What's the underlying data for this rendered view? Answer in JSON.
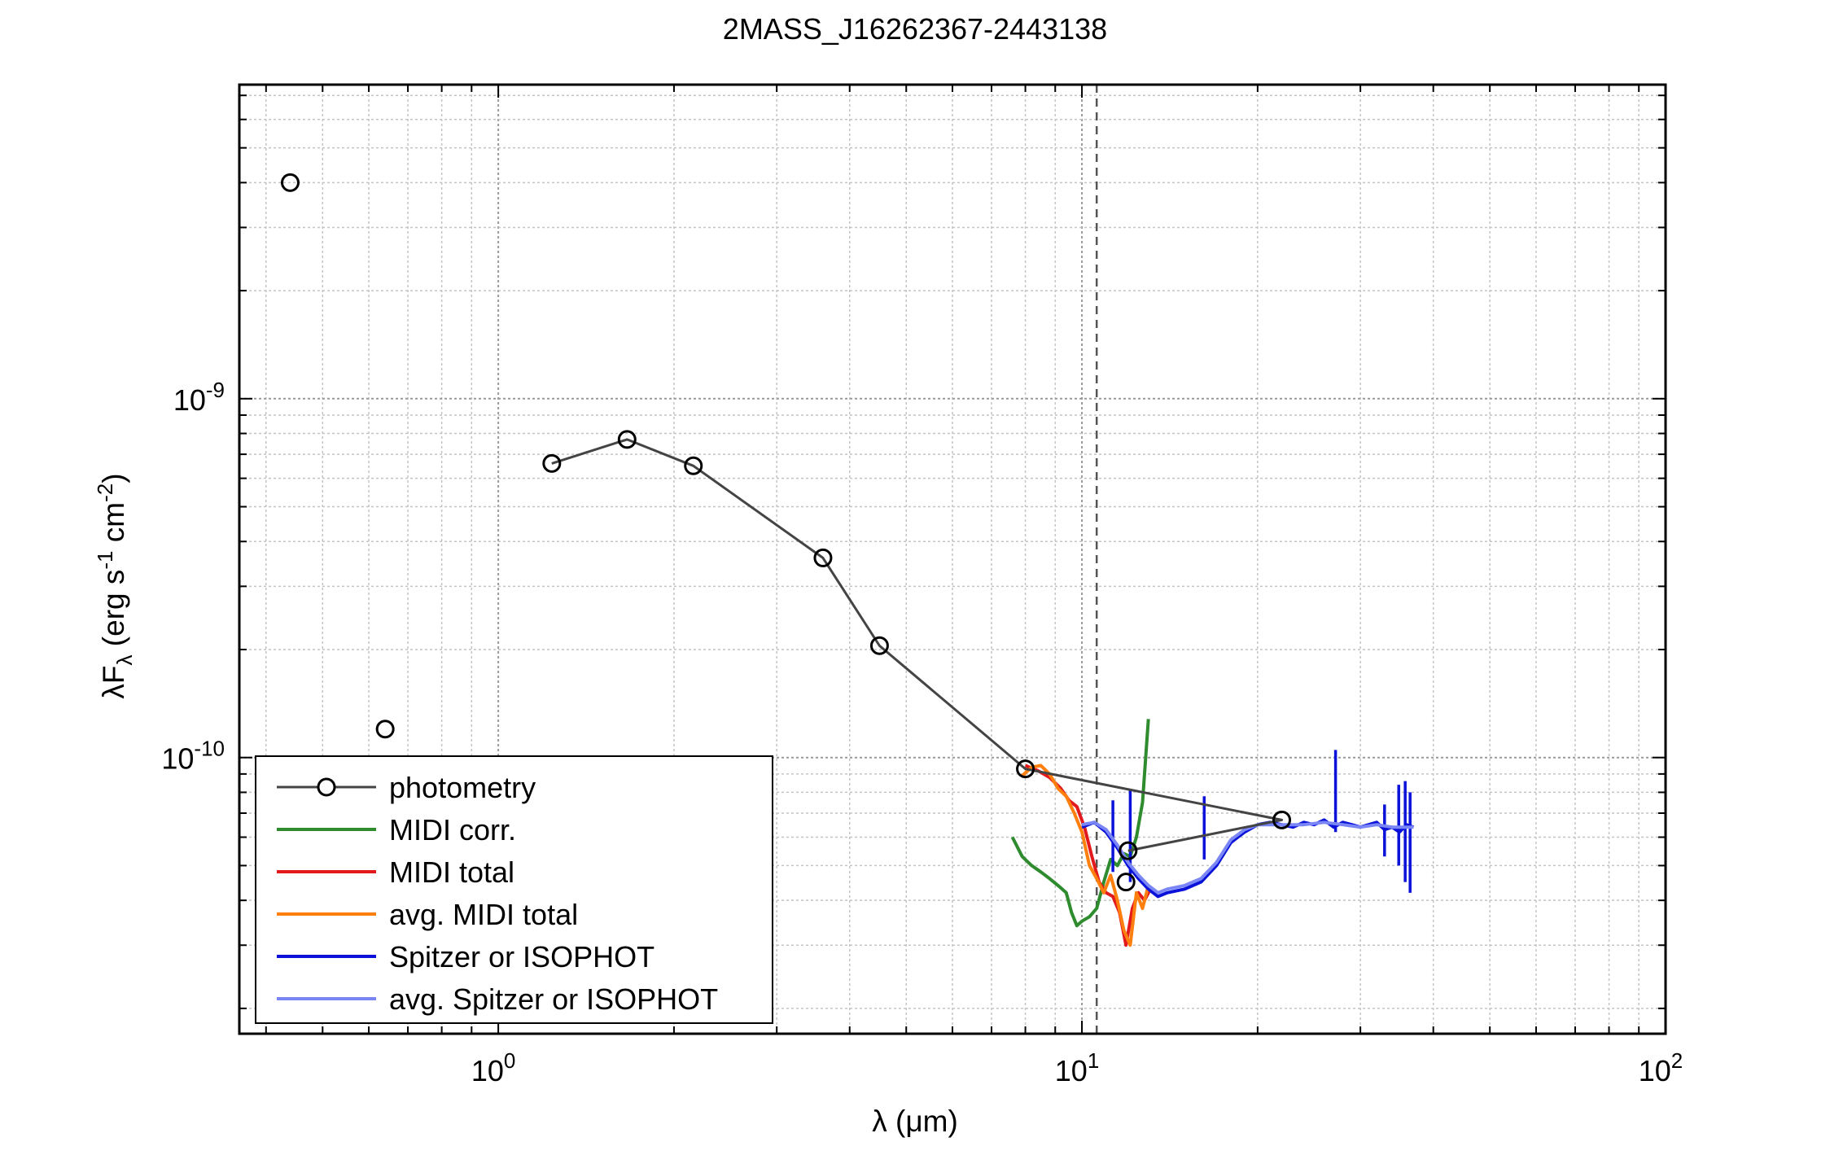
{
  "chart_data": {
    "type": "line",
    "title": "2MASS_J16262367-2443138",
    "xlabel": {
      "lambda": "λ",
      "rest": " (μm)"
    },
    "ylabel": {
      "lambda": "λF",
      "sub": "λ",
      "p1": " (erg s",
      "sup1": "-1",
      "p2": " cm",
      "sup2": "-2",
      "p3": ")"
    },
    "x_scale": "log",
    "y_scale": "log",
    "xlim": [
      0.36,
      100
    ],
    "ylim": [
      1.7e-11,
      7.5e-09
    ],
    "grid": true,
    "legend_position": "lower-left",
    "x_ticks": [
      {
        "value": 1,
        "base": "10",
        "exp": "0"
      },
      {
        "value": 10,
        "base": "10",
        "exp": "1"
      },
      {
        "value": 100,
        "base": "10",
        "exp": "2"
      }
    ],
    "y_ticks": [
      {
        "value": 1e-10,
        "base": "10",
        "exp": "-10"
      },
      {
        "value": 1e-09,
        "base": "10",
        "exp": "-9"
      }
    ],
    "vertical_marker": {
      "x": 10.6,
      "style": "dashed",
      "color": "#555555"
    },
    "series": [
      {
        "name": "photometry",
        "color": "#444444",
        "marker": "circle",
        "x": [
          1.235,
          1.662,
          2.159,
          3.6,
          4.5,
          8.0,
          22.0,
          12.0
        ],
        "y": [
          6.6e-10,
          7.7e-10,
          6.5e-10,
          3.6e-10,
          2.05e-10,
          9.3e-11,
          6.7e-11,
          5.5e-11
        ],
        "unconnected": {
          "x": [
            0.44,
            0.64,
            11.9
          ],
          "y": [
            4e-09,
            1.2e-10,
            4.5e-11
          ]
        }
      },
      {
        "name": "MIDI corr.",
        "color": "#2e8b2e",
        "x": [
          7.6,
          7.9,
          8.2,
          8.5,
          8.8,
          9.1,
          9.4,
          9.6,
          9.8,
          10.0,
          10.3,
          10.6,
          10.9,
          11.2,
          11.5,
          11.8,
          12.1,
          12.4,
          12.7,
          13.0
        ],
        "y": [
          6e-11,
          5.3e-11,
          5e-11,
          4.8e-11,
          4.6e-11,
          4.4e-11,
          4.2e-11,
          3.7e-11,
          3.4e-11,
          3.5e-11,
          3.6e-11,
          3.8e-11,
          4.5e-11,
          5.2e-11,
          5e-11,
          5.4e-11,
          5.3e-11,
          6e-11,
          7.5e-11,
          1.28e-10
        ]
      },
      {
        "name": "MIDI total",
        "color": "#e31a1c",
        "x": [
          8.0,
          8.4,
          8.8,
          9.2,
          9.5,
          9.8,
          10.1,
          10.4,
          10.7,
          11.0,
          11.3,
          11.6,
          11.9,
          12.2,
          12.5,
          12.8,
          13.1
        ],
        "y": [
          9.5e-11,
          9.2e-11,
          8.8e-11,
          8.2e-11,
          7.6e-11,
          7.3e-11,
          6.4e-11,
          5.3e-11,
          4.5e-11,
          4.2e-11,
          4.1e-11,
          3.7e-11,
          3e-11,
          3.8e-11,
          4.2e-11,
          4e-11,
          4.3e-11
        ]
      },
      {
        "name": "avg. MIDI total",
        "color": "#ff7f0e",
        "x": [
          7.9,
          8.2,
          8.5,
          8.8,
          9.1,
          9.4,
          9.7,
          10.0,
          10.3,
          10.6,
          10.9,
          11.2,
          11.5,
          11.8,
          12.1,
          12.4,
          12.7,
          13.0
        ],
        "y": [
          8.9e-11,
          9.4e-11,
          9.5e-11,
          9e-11,
          8.2e-11,
          7.8e-11,
          7e-11,
          6.2e-11,
          5e-11,
          4.6e-11,
          4.2e-11,
          4.7e-11,
          4e-11,
          3.3e-11,
          3e-11,
          4.2e-11,
          3.8e-11,
          4.4e-11
        ]
      },
      {
        "name": "Spitzer or ISOPHOT",
        "color": "#0a12d9",
        "x": [
          10.0,
          10.5,
          11.0,
          11.5,
          12.0,
          12.5,
          13.0,
          13.5,
          14.0,
          15.0,
          16.0,
          17.0,
          18.0,
          19.0,
          20.0,
          21.0,
          22.0,
          23.0,
          24.0,
          25.0,
          26.0,
          27.0,
          28.0,
          29.0,
          30.0,
          31.0,
          32.0,
          33.0,
          34.0,
          35.0,
          36.0,
          37.0
        ],
        "y": [
          6.4e-11,
          6.6e-11,
          6.2e-11,
          5.6e-11,
          5e-11,
          4.6e-11,
          4.3e-11,
          4.1e-11,
          4.2e-11,
          4.3e-11,
          4.5e-11,
          5e-11,
          5.8e-11,
          6.2e-11,
          6.5e-11,
          6.6e-11,
          6.5e-11,
          6.4e-11,
          6.6e-11,
          6.5e-11,
          6.7e-11,
          6.4e-11,
          6.6e-11,
          6.5e-11,
          6.4e-11,
          6.5e-11,
          6.6e-11,
          6.3e-11,
          6.4e-11,
          6.2e-11,
          6.5e-11,
          6.4e-11
        ],
        "spikes": [
          {
            "x": 11.3,
            "y0": 4.8e-11,
            "y1": 7.6e-11
          },
          {
            "x": 12.1,
            "y0": 4.5e-11,
            "y1": 8.1e-11
          },
          {
            "x": 16.2,
            "y0": 5.2e-11,
            "y1": 7.8e-11
          },
          {
            "x": 27.2,
            "y0": 6.2e-11,
            "y1": 1.05e-10
          },
          {
            "x": 33.0,
            "y0": 5.3e-11,
            "y1": 7.4e-11
          },
          {
            "x": 34.9,
            "y0": 5e-11,
            "y1": 8.4e-11
          },
          {
            "x": 35.8,
            "y0": 4.5e-11,
            "y1": 8.6e-11
          },
          {
            "x": 36.5,
            "y0": 4.2e-11,
            "y1": 8e-11
          }
        ]
      },
      {
        "name": "avg. Spitzer or ISOPHOT",
        "color": "#7a86f5",
        "x": [
          10.0,
          10.5,
          11.0,
          11.5,
          12.0,
          12.5,
          13.0,
          13.5,
          14.0,
          15.0,
          16.0,
          17.0,
          18.0,
          19.0,
          20.0,
          22.0,
          24.0,
          26.0,
          28.0,
          30.0,
          32.0,
          34.0,
          36.0,
          37.0
        ],
        "y": [
          6.5e-11,
          6.6e-11,
          6.3e-11,
          5.7e-11,
          5.1e-11,
          4.7e-11,
          4.4e-11,
          4.2e-11,
          4.3e-11,
          4.4e-11,
          4.6e-11,
          5.1e-11,
          5.9e-11,
          6.3e-11,
          6.5e-11,
          6.5e-11,
          6.5e-11,
          6.6e-11,
          6.5e-11,
          6.4e-11,
          6.5e-11,
          6.4e-11,
          6.4e-11,
          6.4e-11
        ]
      }
    ]
  }
}
